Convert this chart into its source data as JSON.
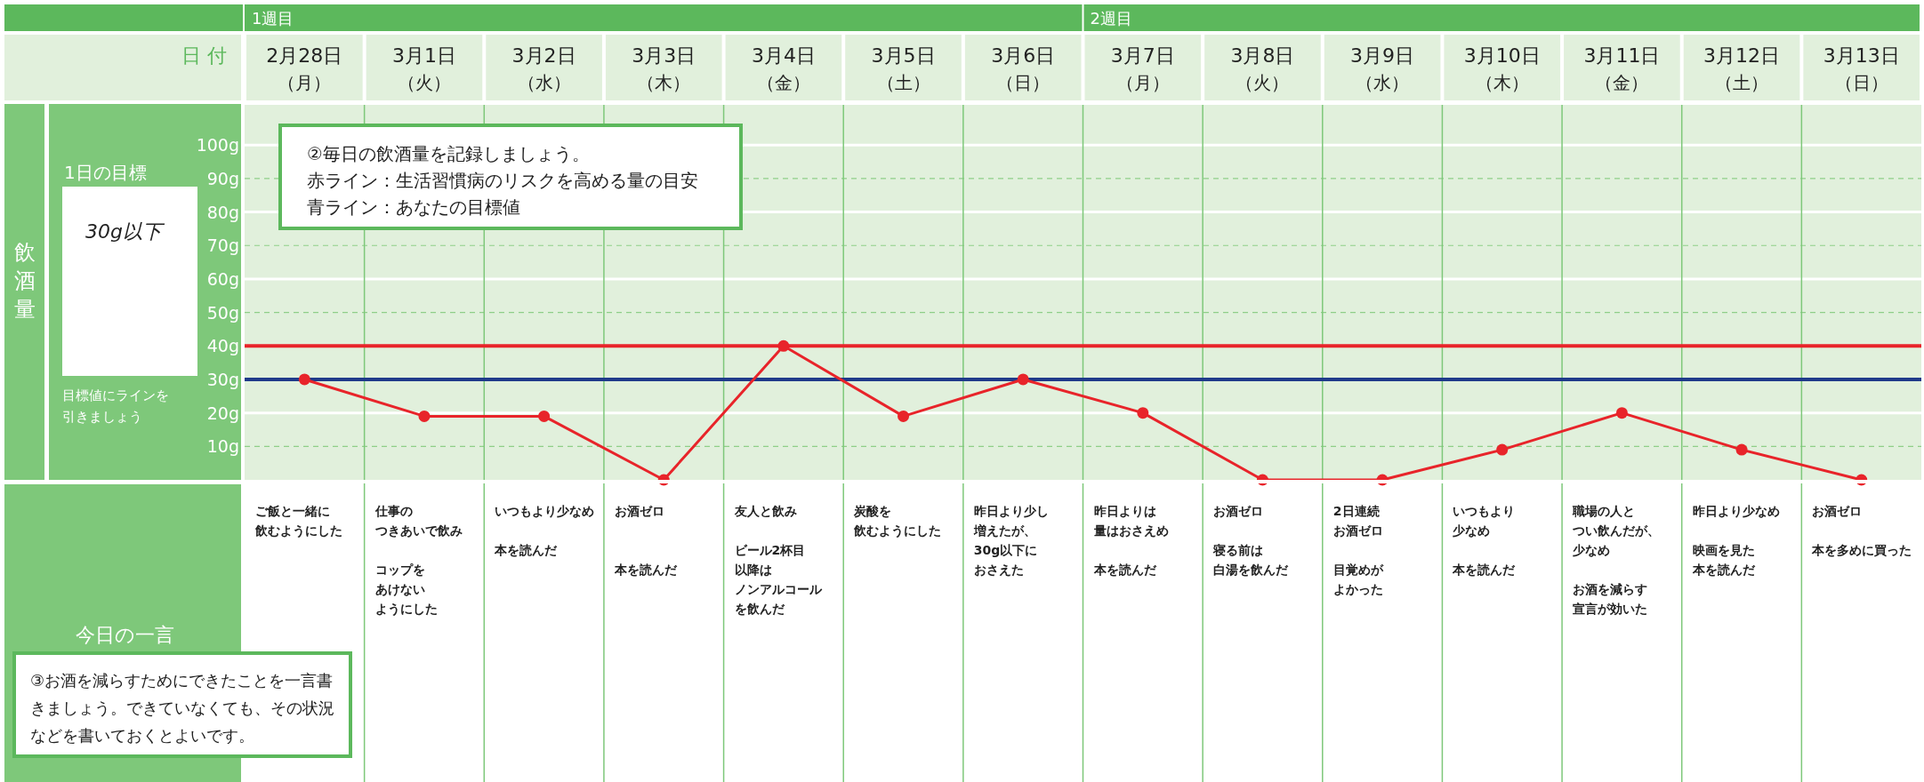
{
  "chart_data": {
    "type": "line",
    "xlabel": "日 付",
    "categories": [
      "2月28日（月）",
      "3月1日（火）",
      "3月2日（水）",
      "3月3日（木）",
      "3月4日（金）",
      "3月5日（土）",
      "3月6日（日）",
      "3月7日（月）",
      "3月8日（火）",
      "3月9日（水）",
      "3月10日（木）",
      "3月11日（金）",
      "3月12日（土）",
      "3月13日（日）"
    ],
    "series": [
      {
        "color": "#e8242a",
        "values": [
          30,
          19,
          19,
          0,
          40,
          19,
          30,
          20,
          0,
          0,
          9,
          20,
          9,
          0
        ]
      }
    ],
    "ylim": [
      0,
      112
    ],
    "yticks": [
      {
        "value": 10,
        "label": "10g"
      },
      {
        "value": 20,
        "label": "20g"
      },
      {
        "value": 30,
        "label": "30g"
      },
      {
        "value": 40,
        "label": "40g"
      },
      {
        "value": 50,
        "label": "50g"
      },
      {
        "value": 60,
        "label": "60g"
      },
      {
        "value": 70,
        "label": "70g"
      },
      {
        "value": 80,
        "label": "80g"
      },
      {
        "value": 90,
        "label": "90g"
      },
      {
        "value": 100,
        "label": "100g"
      }
    ],
    "grid": true,
    "marker": "circle",
    "ref_lines": [
      {
        "axis": "y",
        "value": 40,
        "color": "#e8242a"
      },
      {
        "axis": "y",
        "value": 30,
        "color": "#1f3a8a"
      }
    ],
    "annotations": [
      "1週目",
      "2週目",
      "②毎日の飲酒量を記録しましょう。",
      "赤ライン：生活習慣病のリスクを高める量の目安",
      "青ライン：あなたの目標値",
      "1日の目標",
      "30g以下",
      "目標値にラインを引きましょう",
      "今日の一言",
      "③お酒を減らすためにできたことを一言書きましょう。できていなくても、その状況などを書いておくとよいです。",
      "飲酒量",
      "ご飯と一緒に",
      "飲むようにした",
      "仕事の",
      "つきあいで飲み",
      "コップを",
      "あけない",
      "ようにした",
      "いつもより少なめ",
      "本を読んだ",
      "お酒ゼロ",
      "本を読んだ",
      "友人と飲み",
      "ビール2杯目",
      "以降は",
      "ノンアルコール",
      "を飲んだ",
      "炭酸を",
      "飲むようにした",
      "昨日より少し",
      "増えたが、",
      "30g以下に",
      "おさえた",
      "昨日よりは",
      "量はおさえめ",
      "本を読んだ",
      "お酒ゼロ",
      "寝る前は",
      "白湯を飲んだ",
      "2日連続",
      "お酒ゼロ",
      "目覚めが",
      "よかった",
      "いつもより",
      "少なめ",
      "本を読んだ",
      "職場の人と",
      "つい飲んだが、",
      "少なめ",
      "お酒を減らす",
      "宣言が効いた",
      "昨日より少なめ",
      "映画を見た",
      "本を読んだ",
      "お酒ゼロ",
      "本を多めに買った"
    ]
  }
}
